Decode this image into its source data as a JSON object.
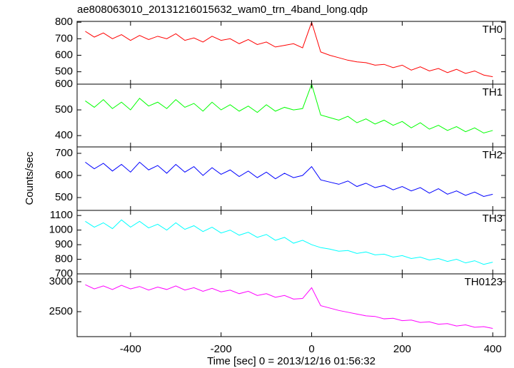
{
  "title": "ae808063010_20131216015632_wam0_trn_4band_long.qdp",
  "y_label": "Counts/sec",
  "x_label": "Time [sec] 0 = 2013/12/16 01:56:32",
  "chart_data": [
    {
      "type": "line",
      "xlim": [
        -518,
        428
      ],
      "xticks": [
        -400,
        -200,
        0,
        200,
        400
      ],
      "ylim": [
        425,
        805
      ],
      "yticks": [
        500,
        600,
        700,
        800
      ],
      "x": [
        -500,
        -480,
        -460,
        -440,
        -420,
        -400,
        -380,
        -360,
        -340,
        -320,
        -300,
        -280,
        -260,
        -240,
        -220,
        -200,
        -180,
        -160,
        -140,
        -120,
        -100,
        -80,
        -60,
        -40,
        -20,
        0,
        20,
        40,
        60,
        80,
        100,
        120,
        140,
        160,
        180,
        200,
        220,
        240,
        260,
        280,
        300,
        320,
        340,
        360,
        380,
        400
      ],
      "series": [
        {
          "name": "TH0",
          "color": "#ff0000",
          "values": [
            745,
            710,
            735,
            700,
            725,
            690,
            720,
            695,
            715,
            700,
            730,
            690,
            705,
            680,
            715,
            690,
            700,
            670,
            695,
            665,
            680,
            650,
            660,
            670,
            645,
            800,
            620,
            600,
            585,
            570,
            560,
            555,
            540,
            545,
            525,
            540,
            510,
            530,
            505,
            520,
            495,
            515,
            490,
            505,
            480,
            470
          ]
        }
      ]
    },
    {
      "type": "line",
      "xlim": [
        -518,
        428
      ],
      "xticks": [
        -400,
        -200,
        0,
        200,
        400
      ],
      "ylim": [
        356,
        600
      ],
      "yticks": [
        400,
        500,
        600
      ],
      "x": [
        -500,
        -480,
        -460,
        -440,
        -420,
        -400,
        -380,
        -360,
        -340,
        -320,
        -300,
        -280,
        -260,
        -240,
        -220,
        -200,
        -180,
        -160,
        -140,
        -120,
        -100,
        -80,
        -60,
        -40,
        -20,
        0,
        20,
        40,
        60,
        80,
        100,
        120,
        140,
        160,
        180,
        200,
        220,
        240,
        260,
        280,
        300,
        320,
        340,
        360,
        380,
        400
      ],
      "series": [
        {
          "name": "TH1",
          "color": "#00ff00",
          "values": [
            535,
            510,
            540,
            505,
            530,
            500,
            545,
            515,
            530,
            505,
            540,
            510,
            525,
            495,
            530,
            500,
            520,
            495,
            515,
            490,
            520,
            495,
            510,
            500,
            505,
            600,
            480,
            470,
            460,
            475,
            450,
            465,
            445,
            460,
            440,
            455,
            430,
            450,
            425,
            440,
            420,
            435,
            415,
            430,
            410,
            420
          ]
        }
      ]
    },
    {
      "type": "line",
      "xlim": [
        -518,
        428
      ],
      "xticks": [
        -400,
        -200,
        0,
        200,
        400
      ],
      "ylim": [
        442,
        729
      ],
      "yticks": [
        500,
        600,
        700
      ],
      "x": [
        -500,
        -480,
        -460,
        -440,
        -420,
        -400,
        -380,
        -360,
        -340,
        -320,
        -300,
        -280,
        -260,
        -240,
        -220,
        -200,
        -180,
        -160,
        -140,
        -120,
        -100,
        -80,
        -60,
        -40,
        -20,
        0,
        20,
        40,
        60,
        80,
        100,
        120,
        140,
        160,
        180,
        200,
        220,
        240,
        260,
        280,
        300,
        320,
        340,
        360,
        380,
        400
      ],
      "series": [
        {
          "name": "TH2",
          "color": "#0000ff",
          "values": [
            660,
            630,
            655,
            620,
            650,
            615,
            660,
            625,
            645,
            610,
            650,
            615,
            640,
            600,
            635,
            605,
            625,
            595,
            620,
            590,
            615,
            585,
            610,
            590,
            600,
            640,
            580,
            570,
            560,
            575,
            550,
            565,
            545,
            555,
            535,
            550,
            530,
            545,
            520,
            540,
            515,
            530,
            510,
            525,
            505,
            515
          ]
        }
      ]
    },
    {
      "type": "line",
      "xlim": [
        -518,
        428
      ],
      "xticks": [
        -400,
        -200,
        0,
        200,
        400
      ],
      "ylim": [
        700,
        1135
      ],
      "yticks": [
        700,
        800,
        900,
        1000,
        1100
      ],
      "x": [
        -500,
        -480,
        -460,
        -440,
        -420,
        -400,
        -380,
        -360,
        -340,
        -320,
        -300,
        -280,
        -260,
        -240,
        -220,
        -200,
        -180,
        -160,
        -140,
        -120,
        -100,
        -80,
        -60,
        -40,
        -20,
        0,
        20,
        40,
        60,
        80,
        100,
        120,
        140,
        160,
        180,
        200,
        220,
        240,
        260,
        280,
        300,
        320,
        340,
        360,
        380,
        400
      ],
      "series": [
        {
          "name": "TH3",
          "color": "#00ffff",
          "values": [
            1060,
            1020,
            1050,
            1010,
            1070,
            1020,
            1060,
            1015,
            1040,
            1000,
            1050,
            1005,
            1030,
            990,
            1020,
            980,
            1000,
            965,
            985,
            950,
            970,
            930,
            950,
            910,
            930,
            900,
            880,
            870,
            855,
            860,
            840,
            850,
            830,
            835,
            815,
            825,
            805,
            815,
            795,
            805,
            785,
            800,
            775,
            790,
            765,
            780
          ]
        }
      ]
    },
    {
      "type": "line",
      "xlim": [
        -518,
        428
      ],
      "xticks": [
        -400,
        -200,
        0,
        200,
        400
      ],
      "ylim": [
        2083,
        3131
      ],
      "yticks": [
        2500,
        3000
      ],
      "x": [
        -500,
        -480,
        -460,
        -440,
        -420,
        -400,
        -380,
        -360,
        -340,
        -320,
        -300,
        -280,
        -260,
        -240,
        -220,
        -200,
        -180,
        -160,
        -140,
        -120,
        -100,
        -80,
        -60,
        -40,
        -20,
        0,
        20,
        40,
        60,
        80,
        100,
        120,
        140,
        160,
        180,
        200,
        220,
        240,
        260,
        280,
        300,
        320,
        340,
        360,
        380,
        400
      ],
      "series": [
        {
          "name": "TH0123",
          "color": "#ff00ff",
          "values": [
            2950,
            2880,
            2930,
            2870,
            2940,
            2880,
            2920,
            2860,
            2910,
            2870,
            2930,
            2860,
            2900,
            2840,
            2890,
            2830,
            2860,
            2800,
            2840,
            2770,
            2800,
            2740,
            2770,
            2710,
            2720,
            2900,
            2600,
            2560,
            2520,
            2490,
            2460,
            2430,
            2420,
            2380,
            2390,
            2350,
            2360,
            2320,
            2330,
            2290,
            2300,
            2260,
            2280,
            2240,
            2250,
            2220
          ]
        }
      ]
    }
  ]
}
